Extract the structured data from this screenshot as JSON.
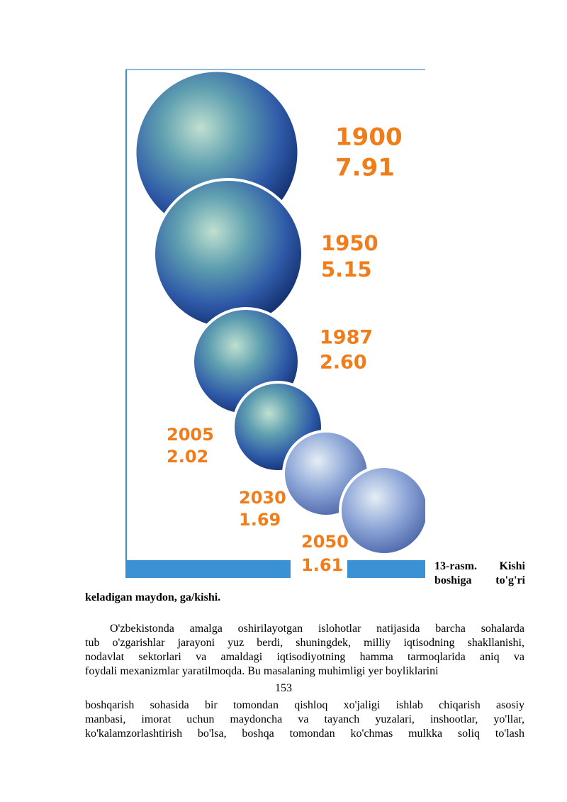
{
  "figure": {
    "labels": [
      {
        "year": "1900",
        "value": "7.91"
      },
      {
        "year": "1950",
        "value": "5.15"
      },
      {
        "year": "1987",
        "value": "2.60"
      },
      {
        "year": "2005",
        "value": "2.02"
      },
      {
        "year": "2030",
        "value": "1.69"
      },
      {
        "year": "2050",
        "value": "1.61"
      }
    ]
  },
  "caption": [
    "13-rasm. Kishi",
    "boshiga to'g'ri",
    "keladigan maydon, ga/kishi."
  ],
  "paragraph_1": [
    "O'zbekistonda amalga oshirilayotgan islohotlar natijasida barcha sohalarda",
    "tub o'zgarishlar jarayoni yuz berdi, shuningdek, milliy iqtisodning shakllanishi,",
    "nodavlat sektorlari va amaldagi iqtisodiyotning hamma tarmoqlarida aniq va",
    "foydali mexanizmlar yaratilmoqda. Bu masalaning muhimligi yer boyliklarini"
  ],
  "page_number": "153",
  "paragraph_2": [
    "boshqarish sohasida bir tomondan qishloq xo'jaligi ishlab chiqarish asosiy",
    "manbasi, imorat uchun maydoncha va tayanch yuzalari, inshootlar, yo'llar,",
    "ko'kalamzorlashtirish bo'lsa, boshqa tomondan ko'chmas mulkka soliq to'lash"
  ]
}
